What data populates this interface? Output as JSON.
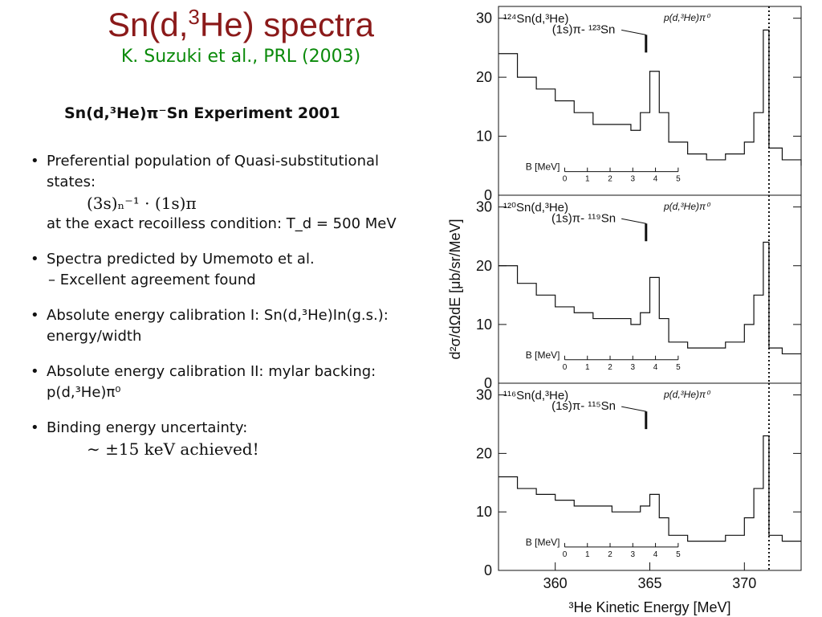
{
  "slide": {
    "title_prefix": "Sn(d,",
    "title_sup": "3",
    "title_suffix": "He) spectra",
    "citation": "K. Suzuki et al., PRL (2003)",
    "experiment_title": "Sn(d,³He)π⁻Sn Experiment 2001"
  },
  "bullets": [
    {
      "text": "Preferential population of Quasi-substitutional states:"
    },
    {
      "math": "(3s)ₙ⁻¹ · (1s)π"
    },
    {
      "text": "at the exact recoilless condition: T_d = 500 MeV"
    },
    {
      "text": "Spectra predicted by Umemoto et al."
    },
    {
      "sub": "Excellent agreement found"
    },
    {
      "text": "Absolute energy calibration I: Sn(d,³He)In(g.s.): energy/width"
    },
    {
      "text": "Absolute energy calibration II: mylar backing: p(d,³He)π⁰"
    },
    {
      "text": "Binding energy uncertainty:"
    },
    {
      "math": "∼ ±15 keV achieved!"
    }
  ],
  "chart_data": [
    {
      "type": "line",
      "label": "¹²⁴Sn(d,³He)",
      "peak_label": "(1s)π- ¹²³Sn",
      "calib_label": "p(d,³He)π⁰",
      "inset_label": "B [MeV]",
      "inset_ticks": [
        "0",
        "1",
        "2",
        "3",
        "4",
        "5"
      ],
      "ylim": [
        0,
        32
      ],
      "yticks": [
        0,
        10,
        20,
        30
      ],
      "xlim": [
        357,
        373
      ],
      "x": [
        357,
        358,
        359,
        360,
        361,
        362,
        363,
        364,
        364.5,
        365,
        365.5,
        366,
        367,
        368,
        369,
        370,
        370.5,
        371,
        371.3,
        372,
        373
      ],
      "y": [
        24,
        20,
        18,
        16,
        14,
        12,
        12,
        11,
        14,
        21,
        14,
        9,
        7,
        6,
        7,
        9,
        14,
        28,
        8,
        6,
        5
      ]
    },
    {
      "type": "line",
      "label": "¹²⁰Sn(d,³He)",
      "peak_label": "(1s)π- ¹¹⁹Sn",
      "calib_label": "p(d,³He)π⁰",
      "inset_label": "B [MeV]",
      "inset_ticks": [
        "0",
        "1",
        "2",
        "3",
        "4",
        "5"
      ],
      "ylim": [
        0,
        32
      ],
      "yticks": [
        0,
        10,
        20,
        30
      ],
      "xlim": [
        357,
        373
      ],
      "x": [
        357,
        358,
        359,
        360,
        361,
        362,
        363,
        364,
        364.5,
        365,
        365.5,
        366,
        367,
        368,
        369,
        370,
        370.5,
        371,
        371.3,
        372,
        373
      ],
      "y": [
        20,
        17,
        15,
        13,
        12,
        11,
        11,
        10,
        12,
        18,
        11,
        7,
        6,
        6,
        7,
        10,
        15,
        24,
        6,
        5,
        5
      ]
    },
    {
      "type": "line",
      "label": "¹¹⁶Sn(d,³He)",
      "peak_label": "(1s)π- ¹¹⁵Sn",
      "calib_label": "p(d,³He)π⁰",
      "inset_label": "B [MeV]",
      "inset_ticks": [
        "0",
        "1",
        "2",
        "3",
        "4",
        "5"
      ],
      "ylim": [
        0,
        32
      ],
      "yticks": [
        0,
        10,
        20,
        30
      ],
      "xlim": [
        357,
        373
      ],
      "x": [
        357,
        358,
        359,
        360,
        361,
        362,
        363,
        364,
        364.5,
        365,
        365.5,
        366,
        367,
        368,
        369,
        370,
        370.5,
        371,
        371.3,
        372,
        373
      ],
      "y": [
        16,
        14,
        13,
        12,
        11,
        11,
        10,
        10,
        11,
        13,
        9,
        6,
        5,
        5,
        6,
        9,
        14,
        23,
        6,
        5,
        5
      ]
    }
  ],
  "axes": {
    "xlabel": "³He Kinetic Energy [MeV]",
    "ylabel": "d²σ/dΩdE [μb/sr/MeV]",
    "xticks": [
      "360",
      "365",
      "370"
    ]
  }
}
